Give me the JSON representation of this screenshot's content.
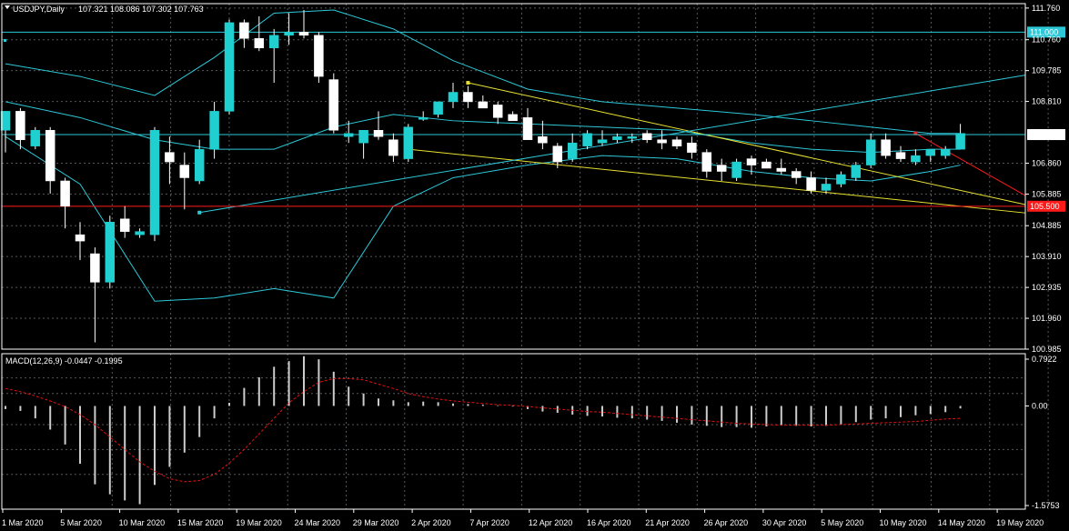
{
  "header": {
    "symbol": "USDJPY,Daily",
    "ohlc": "107.321 108.086 107.302 107.763",
    "macd_label": "MACD(12,26,9) -0.0447 -0.1995"
  },
  "colors": {
    "background": "#000000",
    "grid": "#9aa0a6",
    "bull_candle": "#20d0d0",
    "bear_candle": "#ffffff",
    "bollinger": "#2cc8d8",
    "trendline": "#e8e030",
    "level_red": "#ff1a1a",
    "price_tag": "#ffffff",
    "signal_line": "#e01010",
    "macd_hist": "#cccccc"
  },
  "chart_data": [
    {
      "type": "candlestick",
      "title": "USDJPY,Daily",
      "y_ticks": [
        "111.760",
        "110.760",
        "109.785",
        "108.810",
        "107.763",
        "106.860",
        "105.885",
        "105.500",
        "104.885",
        "103.910",
        "102.935",
        "101.960",
        "100.985"
      ],
      "ylim": [
        100.985,
        111.9
      ],
      "x_ticks": [
        "1 Mar 2020",
        "5 Mar 2020",
        "10 Mar 2020",
        "15 Mar 2020",
        "19 Mar 2020",
        "24 Mar 2020",
        "29 Mar 2020",
        "2 Apr 2020",
        "7 Apr 2020",
        "12 Apr 2020",
        "16 Apr 2020",
        "21 Apr 2020",
        "26 Apr 2020",
        "30 Apr 2020",
        "5 May 2020",
        "10 May 2020",
        "14 May 2020",
        "19 May 2020"
      ],
      "horizontal_levels": [
        {
          "value": 111.0,
          "label": "111.000",
          "color": "#2cc8d8"
        },
        {
          "value": 107.763,
          "label": "107.763",
          "color": "#2cc8d8"
        },
        {
          "value": 105.5,
          "label": "105.500",
          "color": "#ff1a1a"
        }
      ],
      "candles": [
        {
          "o": 107.9,
          "h": 108.5,
          "l": 107.2,
          "c": 108.5
        },
        {
          "o": 108.5,
          "h": 108.6,
          "l": 107.3,
          "c": 107.6
        },
        {
          "o": 107.4,
          "h": 108.0,
          "l": 107.3,
          "c": 107.9
        },
        {
          "o": 107.9,
          "h": 108.0,
          "l": 105.9,
          "c": 106.3
        },
        {
          "o": 106.3,
          "h": 106.4,
          "l": 104.8,
          "c": 105.5
        },
        {
          "o": 104.6,
          "h": 105.0,
          "l": 103.8,
          "c": 104.4
        },
        {
          "o": 104.0,
          "h": 104.2,
          "l": 101.2,
          "c": 103.1
        },
        {
          "o": 103.1,
          "h": 105.2,
          "l": 102.9,
          "c": 105.0
        },
        {
          "o": 105.1,
          "h": 105.5,
          "l": 104.5,
          "c": 104.7
        },
        {
          "o": 104.6,
          "h": 104.8,
          "l": 104.5,
          "c": 104.7
        },
        {
          "o": 104.6,
          "h": 108.0,
          "l": 104.4,
          "c": 107.9
        },
        {
          "o": 107.2,
          "h": 107.7,
          "l": 106.2,
          "c": 106.9
        },
        {
          "o": 106.8,
          "h": 107.2,
          "l": 105.4,
          "c": 106.4
        },
        {
          "o": 106.3,
          "h": 107.6,
          "l": 106.2,
          "c": 107.3
        },
        {
          "o": 107.3,
          "h": 108.8,
          "l": 107.0,
          "c": 108.5
        },
        {
          "o": 108.5,
          "h": 111.4,
          "l": 108.4,
          "c": 111.3
        },
        {
          "o": 111.3,
          "h": 111.4,
          "l": 110.5,
          "c": 110.8
        },
        {
          "o": 110.8,
          "h": 111.5,
          "l": 110.4,
          "c": 110.5
        },
        {
          "o": 110.5,
          "h": 111.1,
          "l": 109.4,
          "c": 110.9
        },
        {
          "o": 110.9,
          "h": 111.6,
          "l": 110.6,
          "c": 111.0
        },
        {
          "o": 111.0,
          "h": 111.7,
          "l": 110.8,
          "c": 110.9
        },
        {
          "o": 110.9,
          "h": 111.0,
          "l": 109.4,
          "c": 109.6
        },
        {
          "o": 109.5,
          "h": 109.7,
          "l": 107.8,
          "c": 107.9
        },
        {
          "o": 107.7,
          "h": 108.2,
          "l": 107.5,
          "c": 107.8
        },
        {
          "o": 107.5,
          "h": 107.9,
          "l": 107.0,
          "c": 107.9
        },
        {
          "o": 107.9,
          "h": 108.5,
          "l": 107.6,
          "c": 107.7
        },
        {
          "o": 107.6,
          "h": 107.8,
          "l": 106.9,
          "c": 107.1
        },
        {
          "o": 107.0,
          "h": 108.1,
          "l": 106.9,
          "c": 108.0
        },
        {
          "o": 108.3,
          "h": 108.5,
          "l": 108.2,
          "c": 108.3
        },
        {
          "o": 108.4,
          "h": 108.7,
          "l": 108.3,
          "c": 108.8
        },
        {
          "o": 108.8,
          "h": 109.4,
          "l": 108.6,
          "c": 109.1
        },
        {
          "o": 109.1,
          "h": 109.3,
          "l": 108.6,
          "c": 108.8
        },
        {
          "o": 108.8,
          "h": 109.0,
          "l": 108.6,
          "c": 108.6
        },
        {
          "o": 108.7,
          "h": 108.8,
          "l": 108.1,
          "c": 108.3
        },
        {
          "o": 108.4,
          "h": 108.5,
          "l": 108.2,
          "c": 108.2
        },
        {
          "o": 108.3,
          "h": 108.6,
          "l": 107.6,
          "c": 107.6
        },
        {
          "o": 107.7,
          "h": 108.2,
          "l": 107.3,
          "c": 107.5
        },
        {
          "o": 107.4,
          "h": 107.5,
          "l": 106.7,
          "c": 106.9
        },
        {
          "o": 107.0,
          "h": 107.8,
          "l": 106.9,
          "c": 107.5
        },
        {
          "o": 107.4,
          "h": 107.9,
          "l": 107.3,
          "c": 107.8
        },
        {
          "o": 107.5,
          "h": 107.9,
          "l": 107.4,
          "c": 107.6
        },
        {
          "o": 107.6,
          "h": 107.8,
          "l": 107.5,
          "c": 107.7
        },
        {
          "o": 107.7,
          "h": 107.8,
          "l": 107.5,
          "c": 107.7
        },
        {
          "o": 107.8,
          "h": 107.9,
          "l": 107.5,
          "c": 107.6
        },
        {
          "o": 107.6,
          "h": 107.9,
          "l": 107.3,
          "c": 107.5
        },
        {
          "o": 107.6,
          "h": 107.7,
          "l": 107.3,
          "c": 107.4
        },
        {
          "o": 107.5,
          "h": 107.7,
          "l": 107.0,
          "c": 107.2
        },
        {
          "o": 107.2,
          "h": 107.3,
          "l": 106.4,
          "c": 106.6
        },
        {
          "o": 106.8,
          "h": 107.0,
          "l": 106.3,
          "c": 106.6
        },
        {
          "o": 106.4,
          "h": 107.0,
          "l": 106.3,
          "c": 106.9
        },
        {
          "o": 107.0,
          "h": 107.1,
          "l": 106.5,
          "c": 106.8
        },
        {
          "o": 106.9,
          "h": 107.0,
          "l": 106.7,
          "c": 106.7
        },
        {
          "o": 106.7,
          "h": 107.0,
          "l": 106.5,
          "c": 106.6
        },
        {
          "o": 106.6,
          "h": 106.7,
          "l": 106.2,
          "c": 106.4
        },
        {
          "o": 106.4,
          "h": 106.6,
          "l": 105.9,
          "c": 106.0
        },
        {
          "o": 106.0,
          "h": 106.4,
          "l": 105.9,
          "c": 106.2
        },
        {
          "o": 106.2,
          "h": 106.6,
          "l": 106.1,
          "c": 106.5
        },
        {
          "o": 106.4,
          "h": 106.9,
          "l": 106.3,
          "c": 106.8
        },
        {
          "o": 106.8,
          "h": 107.8,
          "l": 106.7,
          "c": 107.6
        },
        {
          "o": 107.6,
          "h": 107.8,
          "l": 107.0,
          "c": 107.1
        },
        {
          "o": 107.2,
          "h": 107.4,
          "l": 106.9,
          "c": 107.0
        },
        {
          "o": 106.9,
          "h": 107.3,
          "l": 106.8,
          "c": 107.1
        },
        {
          "o": 107.1,
          "h": 107.3,
          "l": 106.9,
          "c": 107.3
        },
        {
          "o": 107.1,
          "h": 107.4,
          "l": 107.0,
          "c": 107.3
        },
        {
          "o": 107.3,
          "h": 108.1,
          "l": 107.3,
          "c": 107.8
        }
      ],
      "bollinger": {
        "upper": [
          [
            0,
            110.0
          ],
          [
            5,
            109.6
          ],
          [
            10,
            109.0
          ],
          [
            14,
            110.2
          ],
          [
            18,
            111.6
          ],
          [
            22,
            111.7
          ],
          [
            26,
            111.1
          ],
          [
            30,
            110.1
          ],
          [
            35,
            109.2
          ],
          [
            40,
            108.8
          ],
          [
            45,
            108.6
          ],
          [
            50,
            108.4
          ],
          [
            54,
            108.2
          ],
          [
            58,
            108.0
          ],
          [
            62,
            107.8
          ],
          [
            64,
            107.8
          ]
        ],
        "middle": [
          [
            0,
            108.8
          ],
          [
            5,
            108.3
          ],
          [
            10,
            107.6
          ],
          [
            14,
            107.3
          ],
          [
            18,
            107.3
          ],
          [
            22,
            108.0
          ],
          [
            26,
            108.4
          ],
          [
            30,
            108.2
          ],
          [
            35,
            108.1
          ],
          [
            40,
            108.0
          ],
          [
            45,
            107.9
          ],
          [
            50,
            107.5
          ],
          [
            54,
            107.3
          ],
          [
            58,
            107.2
          ],
          [
            62,
            107.3
          ],
          [
            64,
            107.3
          ]
        ],
        "lower": [
          [
            0,
            107.7
          ],
          [
            5,
            106.2
          ],
          [
            10,
            102.5
          ],
          [
            14,
            102.6
          ],
          [
            18,
            102.9
          ],
          [
            22,
            102.6
          ],
          [
            26,
            105.5
          ],
          [
            30,
            106.4
          ],
          [
            35,
            106.8
          ],
          [
            40,
            107.1
          ],
          [
            45,
            107.0
          ],
          [
            50,
            106.6
          ],
          [
            54,
            106.4
          ],
          [
            58,
            106.3
          ],
          [
            62,
            106.6
          ],
          [
            64,
            106.8
          ]
        ]
      },
      "trendlines": [
        {
          "from": [
            31,
            109.4
          ],
          "to": [
            64,
            106.0
          ],
          "color": "#e8e030"
        },
        {
          "from": [
            27,
            107.3
          ],
          "to": [
            64,
            105.5
          ],
          "color": "#e8e030"
        },
        {
          "from": [
            13,
            105.3
          ],
          "to": [
            64,
            109.3
          ],
          "color": "#2cc8d8"
        },
        {
          "from": [
            61,
            107.8
          ],
          "to": [
            64,
            107.0
          ],
          "color": "#ff1a1a"
        }
      ]
    },
    {
      "type": "bar",
      "title": "MACD(12,26,9) -0.0447 -0.1995",
      "y_ticks": [
        "0.7922",
        "0.00",
        "-1.5753"
      ],
      "ylim": [
        -1.66,
        0.84
      ],
      "macd": [
        -0.05,
        -0.08,
        -0.2,
        -0.38,
        -0.62,
        -0.93,
        -1.26,
        -1.42,
        -1.52,
        -1.58,
        -1.27,
        -0.98,
        -0.75,
        -0.5,
        -0.2,
        0.05,
        0.29,
        0.46,
        0.63,
        0.72,
        0.8,
        0.75,
        0.55,
        0.31,
        0.2,
        0.12,
        0.09,
        0.06,
        0.07,
        0.06,
        0.04,
        0.03,
        0.02,
        0.01,
        -0.01,
        -0.05,
        -0.09,
        -0.11,
        -0.14,
        -0.16,
        -0.17,
        -0.19,
        -0.2,
        -0.22,
        -0.24,
        -0.27,
        -0.3,
        -0.32,
        -0.34,
        -0.34,
        -0.35,
        -0.33,
        -0.31,
        -0.32,
        -0.33,
        -0.32,
        -0.3,
        -0.26,
        -0.22,
        -0.2,
        -0.18,
        -0.15,
        -0.13,
        -0.1,
        -0.04
      ],
      "signal": [
        0.28,
        0.23,
        0.16,
        0.08,
        -0.01,
        -0.14,
        -0.3,
        -0.5,
        -0.7,
        -0.9,
        -1.05,
        -1.17,
        -1.22,
        -1.2,
        -1.1,
        -0.92,
        -0.7,
        -0.45,
        -0.2,
        0.05,
        0.23,
        0.38,
        0.44,
        0.44,
        0.42,
        0.35,
        0.28,
        0.2,
        0.15,
        0.11,
        0.08,
        0.06,
        0.04,
        0.02,
        0.01,
        -0.01,
        -0.03,
        -0.05,
        -0.07,
        -0.09,
        -0.1,
        -0.12,
        -0.14,
        -0.16,
        -0.18,
        -0.2,
        -0.22,
        -0.24,
        -0.26,
        -0.28,
        -0.29,
        -0.3,
        -0.31,
        -0.31,
        -0.31,
        -0.31,
        -0.3,
        -0.29,
        -0.28,
        -0.27,
        -0.26,
        -0.25,
        -0.23,
        -0.21,
        -0.2
      ]
    }
  ]
}
